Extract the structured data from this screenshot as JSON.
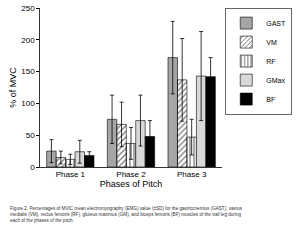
{
  "chart_data": {
    "type": "bar",
    "x_label": "Phases of Pitch",
    "y_label": "% of MVC",
    "categories": [
      "Phase 1",
      "Phase 2",
      "Phase 3"
    ],
    "ylim": [
      0,
      250
    ],
    "yticks": [
      0,
      50,
      100,
      150,
      200,
      250
    ],
    "grid": false,
    "legend": "upper right",
    "series": [
      {
        "name": "GAST",
        "color": "#a6a6a6",
        "marker": "solid",
        "values": [
          25,
          75,
          172
        ],
        "errors": [
          18,
          38,
          57
        ]
      },
      {
        "name": "VM",
        "color": "#ffffff",
        "marker": "diagonal",
        "values": [
          15,
          67,
          137
        ],
        "errors": [
          10,
          35,
          65
        ]
      },
      {
        "name": "RF",
        "color": "#ffffff",
        "marker": "vertical",
        "values": [
          12,
          37,
          47
        ],
        "errors": [
          8,
          25,
          28
        ]
      },
      {
        "name": "GMax",
        "color": "#d9d9d9",
        "marker": "solid",
        "values": [
          24,
          73,
          143
        ],
        "errors": [
          18,
          40,
          70
        ]
      },
      {
        "name": "BF",
        "color": "#000000",
        "marker": "solid",
        "values": [
          18,
          48,
          142
        ],
        "errors": [
          6,
          25,
          30
        ]
      }
    ],
    "caption": [
      "Figure 2. Percentages of MVIC mean electromyography (EMG) value (±SD) for the gastrocnemius (GAST), vastus",
      "medialis (VM), rectus femoris (RF), gluteus maximus (GM), and biceps femoris (BF) muscles of the trail leg during",
      "each of the phases of the pitch."
    ]
  }
}
